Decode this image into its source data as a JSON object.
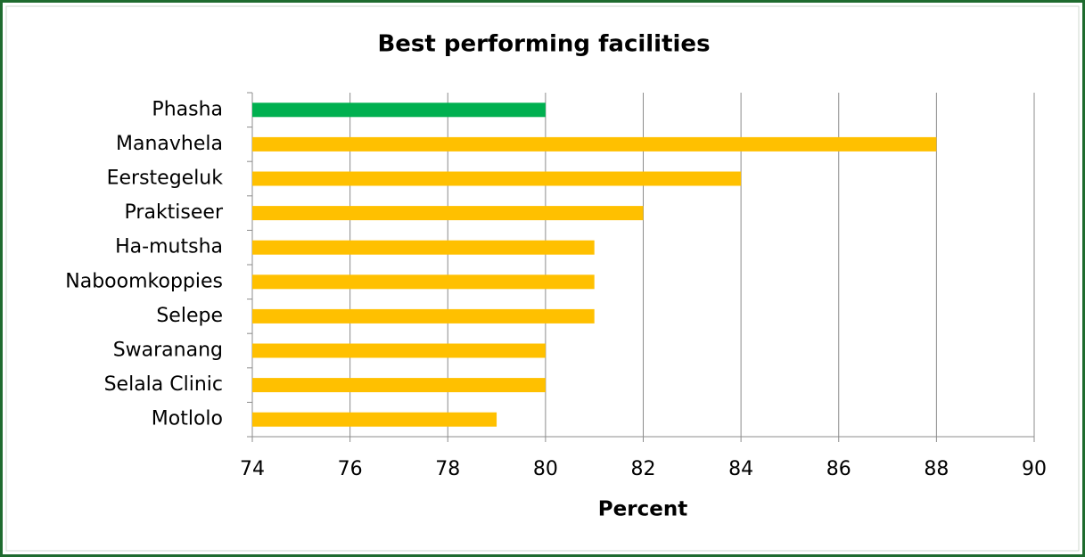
{
  "chart_data": {
    "type": "barh",
    "title": "Best performing facilities",
    "xlabel": "Percent",
    "categories": [
      "Phasha",
      "Manavhela",
      "Eerstegeluk",
      "Praktiseer",
      "Ha-mutsha",
      "Naboomkoppies",
      "Selepe",
      "Swaranang",
      "Selala Clinic",
      "Motlolo"
    ],
    "values": [
      80,
      88,
      84,
      82,
      81,
      81,
      81,
      80,
      80,
      79
    ],
    "colors": [
      "#00b050",
      "#ffc000",
      "#ffc000",
      "#ffc000",
      "#ffc000",
      "#ffc000",
      "#ffc000",
      "#ffc000",
      "#ffc000",
      "#ffc000"
    ],
    "xlim": [
      74,
      90
    ],
    "xticks": [
      74,
      76,
      78,
      80,
      82,
      84,
      86,
      88,
      90
    ],
    "grid": true
  }
}
